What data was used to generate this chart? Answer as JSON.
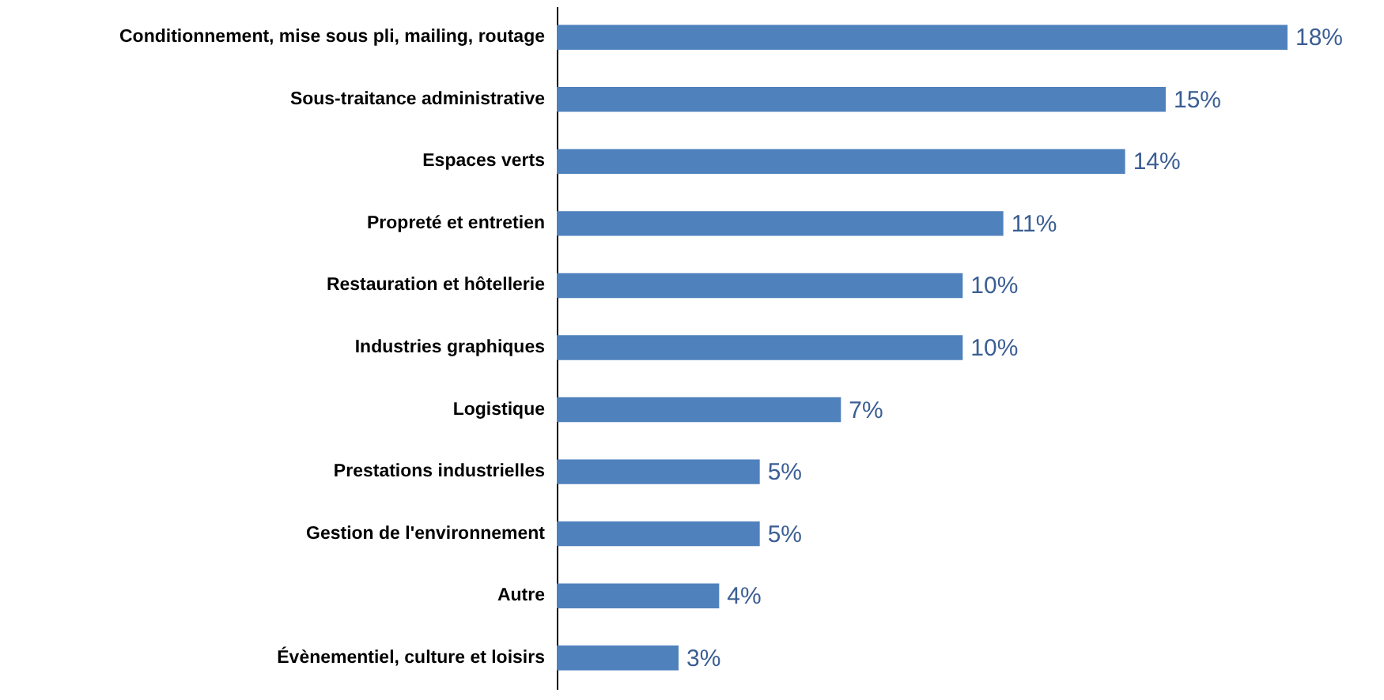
{
  "chart_data": {
    "type": "bar",
    "orientation": "horizontal",
    "categories": [
      "Conditionnement, mise sous pli, mailing, routage",
      "Sous-traitance administrative",
      "Espaces verts",
      "Propreté et entretien",
      "Restauration et hôtellerie",
      "Industries graphiques",
      "Logistique",
      "Prestations industrielles",
      "Gestion de l'environnement",
      "Autre",
      "Évènementiel, culture et loisirs"
    ],
    "values": [
      18,
      15,
      14,
      11,
      10,
      10,
      7,
      5,
      5,
      4,
      3
    ],
    "value_labels": [
      "18%",
      "15%",
      "14%",
      "11%",
      "10%",
      "10%",
      "7%",
      "5%",
      "5%",
      "4%",
      "3%"
    ],
    "color": "#4f81bd",
    "grid": false
  }
}
